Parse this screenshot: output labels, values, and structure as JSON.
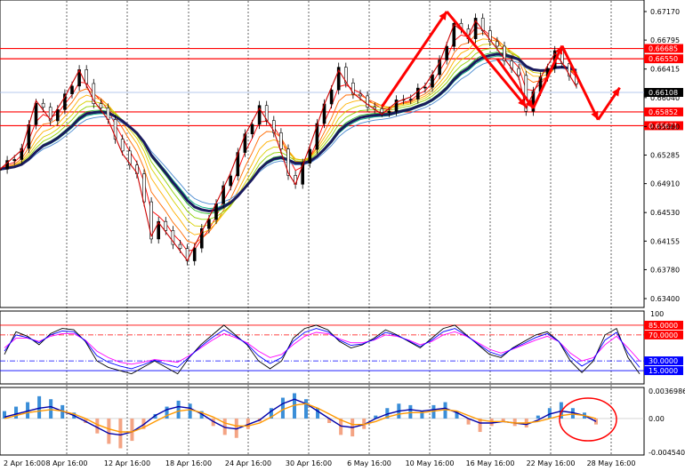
{
  "chart_data": [
    {
      "type": "candlestick",
      "pane": "price",
      "price_axis_ticks": [
        "0.67170",
        "0.66795",
        "0.66415",
        "0.66040",
        "0.65660",
        "0.65285",
        "0.64910",
        "0.64530",
        "0.64155",
        "0.63780",
        "0.63400"
      ],
      "x_ticks": [
        "2 Apr 16:00",
        "8 Apr 16:00",
        "12 Apr 16:00",
        "18 Apr 16:00",
        "24 Apr 16:00",
        "30 Apr 16:00",
        "6 May 16:00",
        "10 May 16:00",
        "16 May 16:00",
        "22 May 16:00",
        "28 May 16:00"
      ],
      "horizontal_levels": [
        {
          "label": "0.66685",
          "value": 0.66685,
          "color": "#ff0000"
        },
        {
          "label": "0.66550",
          "value": 0.6655,
          "color": "#ff0000"
        },
        {
          "label": "0.65852",
          "value": 0.65852,
          "color": "#ff0000"
        },
        {
          "label": "0.65671",
          "value": 0.65671,
          "color": "#ff0000"
        }
      ],
      "current_price": {
        "label": "0.66108",
        "value": 0.66108,
        "color": "#000000"
      },
      "close_path": [
        [
          0,
          0.651
        ],
        [
          3,
          0.6535
        ],
        [
          5,
          0.66
        ],
        [
          7,
          0.6575
        ],
        [
          9,
          0.6605
        ],
        [
          11,
          0.664
        ],
        [
          13,
          0.66
        ],
        [
          15,
          0.6575
        ],
        [
          17,
          0.653
        ],
        [
          19,
          0.6505
        ],
        [
          21,
          0.6422
        ],
        [
          22,
          0.644
        ],
        [
          24,
          0.6415
        ],
        [
          26,
          0.639
        ],
        [
          28,
          0.6428
        ],
        [
          30,
          0.6465
        ],
        [
          32,
          0.6505
        ],
        [
          34,
          0.6555
        ],
        [
          36,
          0.659
        ],
        [
          38,
          0.656
        ],
        [
          40,
          0.6505
        ],
        [
          41,
          0.649
        ],
        [
          43,
          0.654
        ],
        [
          45,
          0.6595
        ],
        [
          47,
          0.664
        ],
        [
          49,
          0.661
        ],
        [
          51,
          0.6595
        ],
        [
          53,
          0.6582
        ],
        [
          55,
          0.6598
        ],
        [
          57,
          0.6605
        ],
        [
          59,
          0.662
        ],
        [
          61,
          0.665
        ],
        [
          63,
          0.67
        ],
        [
          65,
          0.6685
        ],
        [
          66,
          0.6705
        ],
        [
          68,
          0.668
        ],
        [
          70,
          0.6655
        ],
        [
          72,
          0.663
        ],
        [
          73,
          0.659
        ],
        [
          75,
          0.663
        ],
        [
          77,
          0.6662
        ],
        [
          78,
          0.665
        ],
        [
          80,
          0.6618
        ]
      ],
      "projection_arrows": [
        {
          "from": [
            69,
            0.6655
          ],
          "to": [
            74,
            0.659
          ]
        },
        {
          "from": [
            74,
            0.659
          ],
          "to": [
            78,
            0.6672
          ]
        },
        {
          "from": [
            78,
            0.6672
          ],
          "to": [
            83,
            0.6575
          ]
        },
        {
          "from": [
            83,
            0.6575
          ],
          "to": [
            86,
            0.6617
          ]
        }
      ],
      "trend_arrows": [
        {
          "from": [
            53,
            0.6592
          ],
          "to": [
            62,
            0.6717
          ]
        },
        {
          "from": [
            62,
            0.6717
          ],
          "to": [
            73,
            0.6592
          ]
        }
      ]
    },
    {
      "type": "line",
      "pane": "oscillator",
      "levels": [
        {
          "label": "85.0000",
          "value": 85,
          "color": "#ff0000"
        },
        {
          "label": "70.0000",
          "value": 70,
          "color": "#ff0000"
        },
        {
          "label": "30.0000",
          "value": 30,
          "color": "#0000ff"
        },
        {
          "label": "15.0000",
          "value": 15,
          "color": "#0000ff"
        }
      ],
      "ylim": [
        0,
        100
      ],
      "top_tick": "100",
      "series": [
        {
          "color": "#000000",
          "values": [
            40,
            75,
            68,
            55,
            72,
            80,
            78,
            60,
            30,
            20,
            15,
            10,
            20,
            30,
            20,
            10,
            35,
            55,
            70,
            85,
            70,
            55,
            30,
            18,
            30,
            65,
            80,
            85,
            78,
            60,
            50,
            55,
            65,
            78,
            70,
            60,
            50,
            65,
            80,
            85,
            70,
            55,
            40,
            35,
            50,
            60,
            70,
            75,
            60,
            30,
            12,
            30,
            70,
            80,
            35,
            10
          ]
        },
        {
          "color": "#ff00ff",
          "values": [
            50,
            65,
            65,
            60,
            68,
            72,
            72,
            62,
            45,
            35,
            28,
            25,
            28,
            32,
            30,
            28,
            38,
            50,
            62,
            72,
            66,
            58,
            45,
            35,
            40,
            55,
            68,
            74,
            72,
            64,
            58,
            58,
            62,
            70,
            68,
            62,
            55,
            60,
            70,
            75,
            68,
            58,
            48,
            42,
            48,
            55,
            62,
            68,
            60,
            42,
            30,
            35,
            55,
            68,
            50,
            30
          ]
        },
        {
          "color": "#0000ff",
          "values": [
            45,
            70,
            66,
            58,
            70,
            76,
            75,
            61,
            38,
            28,
            22,
            18,
            24,
            31,
            25,
            20,
            36,
            52,
            66,
            78,
            68,
            56,
            38,
            26,
            35,
            60,
            74,
            80,
            75,
            62,
            54,
            56,
            63,
            74,
            69,
            61,
            52,
            62,
            75,
            80,
            69,
            56,
            44,
            38,
            49,
            57,
            66,
            72,
            60,
            36,
            22,
            32,
            62,
            74,
            42,
            20
          ]
        }
      ]
    },
    {
      "type": "bar",
      "pane": "macd",
      "axis_ticks": [
        "0.0036986",
        "0.00",
        "-0.0045405"
      ],
      "ylim": [
        -0.0045405,
        0.0036986
      ],
      "histogram": [
        0.001,
        0.0016,
        0.0022,
        0.003,
        0.0026,
        0.0018,
        0.0008,
        -0.0006,
        -0.002,
        -0.0034,
        -0.004,
        -0.003,
        -0.0014,
        0.0006,
        0.0016,
        0.0024,
        0.002,
        0.001,
        -0.001,
        -0.0022,
        -0.0026,
        -0.0014,
        -0.0004,
        0.0014,
        0.0028,
        0.0034,
        0.0026,
        0.0014,
        -0.0006,
        -0.0022,
        -0.0024,
        -0.0014,
        0.0004,
        0.0014,
        0.002,
        0.0018,
        0.001,
        0.0018,
        0.0022,
        0.001,
        -0.0008,
        -0.0018,
        -0.001,
        -0.0004,
        -0.001,
        -0.0012,
        0.0004,
        0.0014,
        0.0022,
        0.0014,
        0.0008,
        -0.0008
      ],
      "series": [
        {
          "color": "#0000aa",
          "values": [
            0.0002,
            0.0006,
            0.001,
            0.0014,
            0.0016,
            0.001,
            0.0004,
            -0.0004,
            -0.0012,
            -0.002,
            -0.0022,
            -0.0018,
            -0.0008,
            0.0004,
            0.0012,
            0.0016,
            0.0014,
            0.0006,
            -0.0004,
            -0.0012,
            -0.0014,
            -0.0008,
            -0.0002,
            0.001,
            0.002,
            0.0026,
            0.002,
            0.001,
            0.0,
            -0.001,
            -0.0012,
            -0.0008,
            0.0,
            0.0006,
            0.001,
            0.0012,
            0.001,
            0.0012,
            0.0014,
            0.0008,
            0.0,
            -0.0006,
            -0.0006,
            -0.0004,
            -0.0006,
            -0.0008,
            -0.0002,
            0.0006,
            0.001,
            0.0008,
            0.0004,
            -0.0004
          ]
        },
        {
          "color": "#ff9900",
          "values": [
            0.0,
            0.0004,
            0.0008,
            0.001,
            0.0012,
            0.001,
            0.0006,
            0.0,
            -0.0008,
            -0.0014,
            -0.0018,
            -0.0018,
            -0.0012,
            -0.0004,
            0.0004,
            0.001,
            0.0012,
            0.0008,
            0.0002,
            -0.0006,
            -0.001,
            -0.001,
            -0.0006,
            0.0002,
            0.0012,
            0.0018,
            0.002,
            0.0014,
            0.0006,
            -0.0002,
            -0.0008,
            -0.0008,
            -0.0004,
            0.0002,
            0.0006,
            0.0008,
            0.0008,
            0.001,
            0.0012,
            0.001,
            0.0004,
            -0.0002,
            -0.0004,
            -0.0004,
            -0.0006,
            -0.0006,
            -0.0004,
            0.0,
            0.0004,
            0.0006,
            0.0004,
            0.0
          ]
        }
      ]
    }
  ]
}
